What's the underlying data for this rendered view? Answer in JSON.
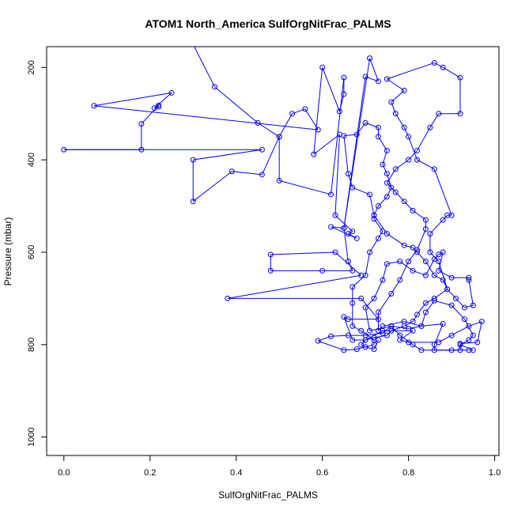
{
  "chart_data": {
    "type": "line",
    "title": "ATOM1 North_America SulfOrgNitFrac_PALMS",
    "xlabel": "SulfOrgNitFrac_PALMS",
    "ylabel": "Pressure (mbar)",
    "xlim": [
      -0.04,
      1.01
    ],
    "ylim": [
      1040,
      155
    ],
    "y_reversed": true,
    "x_ticks": [
      0.0,
      0.2,
      0.4,
      0.6,
      0.8,
      1.0
    ],
    "x_tick_labels": [
      "0.0",
      "0.2",
      "0.4",
      "0.6",
      "0.8",
      "1.0"
    ],
    "y_ticks": [
      200,
      400,
      600,
      800,
      1000
    ],
    "y_tick_labels": [
      "200",
      "400",
      "600",
      "800",
      "1000"
    ],
    "grid": false,
    "legend": "none",
    "colors": {
      "series": "#0000ff",
      "axes": "#000000"
    },
    "series": [
      {
        "marker": "open-circle",
        "points": [
          [
            0.3,
            150
          ],
          [
            0.35,
            242
          ],
          [
            0.45,
            320
          ],
          [
            0.5,
            350
          ],
          [
            0.53,
            300
          ],
          [
            0.56,
            290
          ],
          [
            0.59,
            335
          ],
          [
            0.07,
            283
          ],
          [
            0.25,
            255
          ],
          [
            0.21,
            288
          ],
          [
            0.22,
            285
          ],
          [
            0.22,
            282
          ],
          [
            0.18,
            322
          ],
          [
            0.18,
            378
          ],
          [
            0.0,
            378
          ],
          [
            0.46,
            378
          ],
          [
            0.3,
            400
          ],
          [
            0.3,
            490
          ],
          [
            0.39,
            425
          ],
          [
            0.46,
            432
          ],
          [
            0.5,
            350
          ],
          [
            0.5,
            445
          ],
          [
            0.62,
            475
          ],
          [
            0.65,
            222
          ],
          [
            0.65,
            258
          ],
          [
            0.64,
            295
          ],
          [
            0.6,
            200
          ],
          [
            0.58,
            388
          ],
          [
            0.64,
            345
          ],
          [
            0.63,
            520
          ],
          [
            0.67,
            555
          ],
          [
            0.66,
            560
          ],
          [
            0.68,
            570
          ],
          [
            0.62,
            545
          ],
          [
            0.65,
            548
          ],
          [
            0.7,
            220
          ],
          [
            0.73,
            230
          ],
          [
            0.71,
            180
          ],
          [
            0.65,
            548
          ],
          [
            0.66,
            620
          ],
          [
            0.67,
            640
          ],
          [
            0.6,
            640
          ],
          [
            0.48,
            640
          ],
          [
            0.48,
            605
          ],
          [
            0.63,
            600
          ],
          [
            0.69,
            650
          ],
          [
            0.38,
            700
          ],
          [
            0.69,
            700
          ],
          [
            0.73,
            745
          ],
          [
            0.66,
            745
          ],
          [
            0.65,
            740
          ],
          [
            0.67,
            790
          ],
          [
            0.7,
            790
          ],
          [
            0.74,
            770
          ],
          [
            0.81,
            770
          ],
          [
            0.78,
            790
          ],
          [
            0.8,
            795
          ],
          [
            0.87,
            795
          ],
          [
            0.9,
            780
          ],
          [
            0.94,
            760
          ],
          [
            0.97,
            750
          ],
          [
            0.96,
            795
          ],
          [
            0.92,
            798
          ],
          [
            0.92,
            812
          ],
          [
            0.86,
            812
          ],
          [
            0.86,
            800
          ],
          [
            0.88,
            755
          ],
          [
            0.83,
            760
          ],
          [
            0.79,
            750
          ],
          [
            0.74,
            760
          ],
          [
            0.73,
            770
          ],
          [
            0.73,
            730
          ],
          [
            0.76,
            690
          ],
          [
            0.78,
            660
          ],
          [
            0.8,
            620
          ],
          [
            0.82,
            595
          ],
          [
            0.84,
            550
          ],
          [
            0.84,
            530
          ],
          [
            0.81,
            510
          ],
          [
            0.79,
            490
          ],
          [
            0.77,
            470
          ],
          [
            0.75,
            450
          ],
          [
            0.77,
            420
          ],
          [
            0.8,
            400
          ],
          [
            0.82,
            380
          ],
          [
            0.85,
            330
          ],
          [
            0.87,
            300
          ],
          [
            0.92,
            300
          ],
          [
            0.92,
            222
          ],
          [
            0.88,
            200
          ],
          [
            0.86,
            190
          ],
          [
            0.75,
            225
          ],
          [
            0.79,
            250
          ],
          [
            0.76,
            275
          ],
          [
            0.77,
            300
          ],
          [
            0.79,
            330
          ],
          [
            0.8,
            350
          ],
          [
            0.82,
            400
          ],
          [
            0.86,
            420
          ],
          [
            0.9,
            520
          ],
          [
            0.89,
            520
          ],
          [
            0.88,
            530
          ],
          [
            0.85,
            560
          ],
          [
            0.85,
            600
          ],
          [
            0.87,
            620
          ],
          [
            0.89,
            680
          ],
          [
            0.91,
            700
          ],
          [
            0.93,
            720
          ],
          [
            0.95,
            715
          ],
          [
            0.94,
            660
          ],
          [
            0.94,
            655
          ],
          [
            0.9,
            655
          ],
          [
            0.87,
            640
          ],
          [
            0.88,
            600
          ],
          [
            0.87,
            605
          ],
          [
            0.86,
            615
          ],
          [
            0.84,
            650
          ],
          [
            0.81,
            640
          ],
          [
            0.78,
            620
          ],
          [
            0.75,
            625
          ],
          [
            0.74,
            660
          ],
          [
            0.72,
            700
          ],
          [
            0.7,
            720
          ],
          [
            0.71,
            770
          ],
          [
            0.76,
            760
          ],
          [
            0.78,
            780
          ],
          [
            0.81,
            800
          ],
          [
            0.83,
            812
          ],
          [
            0.9,
            812
          ],
          [
            0.94,
            812
          ],
          [
            0.95,
            812
          ],
          [
            0.92,
            800
          ],
          [
            0.94,
            790
          ],
          [
            0.95,
            780
          ],
          [
            0.93,
            745
          ],
          [
            0.9,
            715
          ],
          [
            0.86,
            705
          ],
          [
            0.84,
            730
          ],
          [
            0.83,
            760
          ],
          [
            0.8,
            765
          ],
          [
            0.76,
            760
          ],
          [
            0.74,
            775
          ],
          [
            0.7,
            780
          ],
          [
            0.66,
            780
          ],
          [
            0.62,
            782
          ],
          [
            0.59,
            792
          ],
          [
            0.65,
            812
          ],
          [
            0.68,
            810
          ],
          [
            0.72,
            800
          ],
          [
            0.72,
            790
          ],
          [
            0.69,
            770
          ],
          [
            0.67,
            760
          ],
          [
            0.67,
            710
          ],
          [
            0.67,
            675
          ],
          [
            0.7,
            650
          ],
          [
            0.71,
            600
          ],
          [
            0.73,
            570
          ],
          [
            0.74,
            555
          ],
          [
            0.72,
            528
          ],
          [
            0.72,
            520
          ],
          [
            0.73,
            500
          ],
          [
            0.75,
            480
          ],
          [
            0.76,
            460
          ],
          [
            0.75,
            430
          ],
          [
            0.74,
            410
          ],
          [
            0.75,
            380
          ],
          [
            0.73,
            350
          ],
          [
            0.73,
            330
          ],
          [
            0.7,
            320
          ],
          [
            0.68,
            345
          ],
          [
            0.65,
            348
          ],
          [
            0.66,
            430
          ],
          [
            0.67,
            460
          ],
          [
            0.71,
            475
          ],
          [
            0.72,
            520
          ],
          [
            0.75,
            560
          ],
          [
            0.79,
            585
          ],
          [
            0.81,
            590
          ],
          [
            0.82,
            600
          ],
          [
            0.84,
            620
          ],
          [
            0.86,
            650
          ],
          [
            0.88,
            660
          ],
          [
            0.89,
            680
          ],
          [
            0.86,
            700
          ],
          [
            0.84,
            710
          ],
          [
            0.82,
            735
          ],
          [
            0.81,
            750
          ],
          [
            0.79,
            760
          ],
          [
            0.76,
            770
          ],
          [
            0.75,
            780
          ],
          [
            0.72,
            785
          ],
          [
            0.7,
            790
          ],
          [
            0.69,
            800
          ],
          [
            0.7,
            805
          ],
          [
            0.72,
            810
          ],
          [
            0.73,
            790
          ]
        ]
      }
    ]
  }
}
